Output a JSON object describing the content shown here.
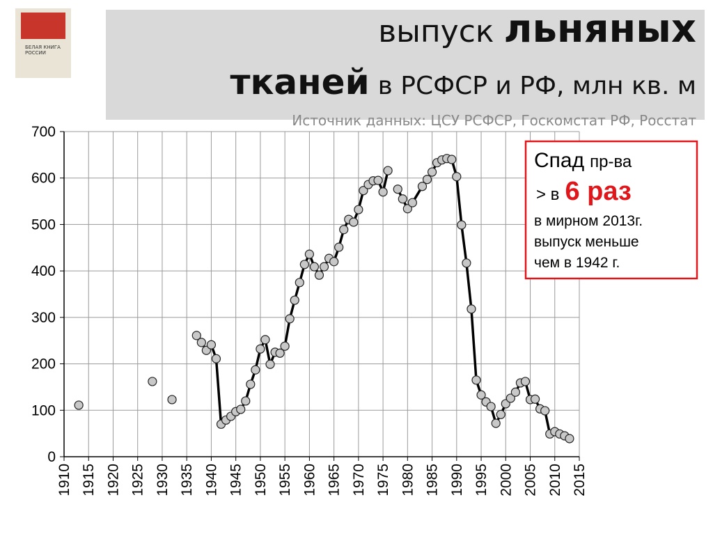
{
  "header": {
    "title_parts": [
      "выпуск",
      "льняных",
      "тканей",
      "в РСФСР и РФ, млн кв. м"
    ],
    "source": "Источник данных: ЦСУ РСФСР, Госкомстат РФ, Росстат"
  },
  "cover": {
    "title": [
      "БЕЛАЯ КНИГА",
      "РОССИИ"
    ]
  },
  "note": {
    "line1": [
      "Спад",
      "пр-ва"
    ],
    "line2": [
      "> в",
      "6 раз"
    ],
    "line3": "в мирном  2013г.",
    "line4": "выпуск меньше",
    "line5": "чем в 1942 г."
  },
  "chart_data": {
    "type": "line",
    "color": "#000000",
    "marker_color": "#c8c8c8",
    "grid": true,
    "x": [
      1913,
      1914,
      1928,
      1929,
      1932,
      1933,
      1937,
      1938,
      1939,
      1940,
      1941,
      1942,
      1943,
      1944,
      1945,
      1946,
      1947,
      1948,
      1949,
      1950,
      1951,
      1952,
      1953,
      1954,
      1955,
      1956,
      1957,
      1958,
      1959,
      1960,
      1961,
      1962,
      1963,
      1964,
      1965,
      1966,
      1967,
      1968,
      1969,
      1970,
      1971,
      1972,
      1973,
      1974,
      1975,
      1976,
      1977,
      1978,
      1979,
      1980,
      1981,
      1983,
      1984,
      1985,
      1986,
      1987,
      1988,
      1989,
      1990,
      1991,
      1992,
      1993,
      1994,
      1995,
      1996,
      1997,
      1998,
      1999,
      2000,
      2001,
      2002,
      2003,
      2004,
      2005,
      2006,
      2007,
      2008,
      2009,
      2010,
      2011,
      2012,
      2013
    ],
    "values": [
      111,
      null,
      162,
      null,
      123,
      null,
      261,
      246,
      229,
      241,
      211,
      70,
      79,
      87,
      97,
      102,
      120,
      156,
      187,
      232,
      252,
      199,
      225,
      223,
      238,
      297,
      337,
      375,
      414,
      436,
      409,
      391,
      409,
      427,
      420,
      451,
      489,
      511,
      505,
      532,
      573,
      586,
      594,
      595,
      570,
      616,
      null,
      576,
      555,
      534,
      547,
      582,
      597,
      613,
      633,
      639,
      642,
      640,
      603,
      499,
      417,
      318,
      165,
      133,
      118,
      108,
      72,
      91,
      114,
      126,
      139,
      159,
      162,
      123,
      124,
      103,
      99,
      49,
      54,
      49,
      45,
      39
    ],
    "xlim": [
      1910,
      2015
    ],
    "xticks": [
      1910,
      1915,
      1920,
      1925,
      1930,
      1935,
      1940,
      1945,
      1950,
      1955,
      1960,
      1965,
      1970,
      1975,
      1980,
      1985,
      1990,
      1995,
      2000,
      2005,
      2010,
      2015
    ],
    "ylim": [
      0,
      700
    ],
    "yticks": [
      0,
      100,
      200,
      300,
      400,
      500,
      600,
      700
    ]
  }
}
